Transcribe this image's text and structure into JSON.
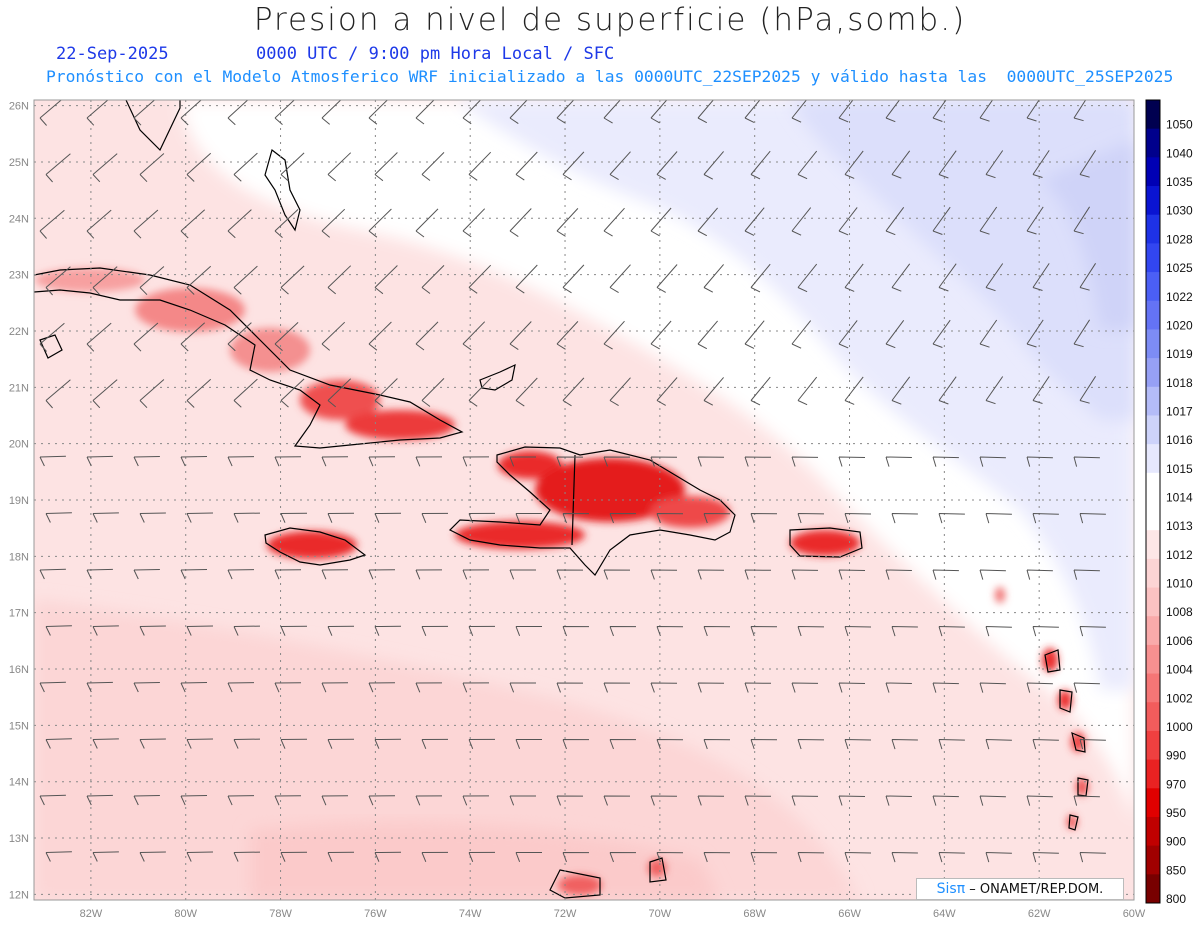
{
  "header": {
    "title": "Presion a nivel de superficie (hPa,somb.)",
    "date": "22-Sep-2025",
    "time_info": "0000 UTC / 9:00 pm Hora Local / SFC",
    "model_info": "Pronóstico con el Modelo Atmosferico WRF inicializado a las 0000UTC_22SEP2025 y válido hasta las  0000UTC_25SEP2025"
  },
  "axes": {
    "lon_labels": [
      "82W",
      "80W",
      "78W",
      "76W",
      "74W",
      "72W",
      "70W",
      "68W",
      "66W",
      "64W",
      "62W",
      "60W"
    ],
    "lon_values": [
      -82,
      -80,
      -78,
      -76,
      -74,
      -72,
      -70,
      -68,
      -66,
      -64,
      -62,
      -60
    ],
    "lat_labels": [
      "26N",
      "25N",
      "24N",
      "23N",
      "22N",
      "21N",
      "20N",
      "19N",
      "18N",
      "17N",
      "16N",
      "15N",
      "14N",
      "13N",
      "12N"
    ],
    "lat_values": [
      26,
      25,
      24,
      23,
      22,
      21,
      20,
      19,
      18,
      17,
      16,
      15,
      14,
      13,
      12
    ],
    "lon_range": [
      -83.2,
      -60.0
    ],
    "lat_range": [
      11.9,
      26.1
    ]
  },
  "colorbar": {
    "levels": [
      "1050",
      "1040",
      "1035",
      "1030",
      "1028",
      "1025",
      "1022",
      "1020",
      "1019",
      "1018",
      "1017",
      "1016",
      "1015",
      "1014",
      "1013",
      "1012",
      "1010",
      "1008",
      "1006",
      "1004",
      "1002",
      "1000",
      "990",
      "970",
      "950",
      "900",
      "850",
      "800"
    ],
    "colors": [
      "#000050",
      "#00008c",
      "#0000b4",
      "#0a14d2",
      "#1e32e6",
      "#3246f0",
      "#4b5ff5",
      "#6473f5",
      "#7d8cf5",
      "#96a0f5",
      "#b4bcf8",
      "#cdd3fa",
      "#e6e8fd",
      "#ffffff",
      "#ffffff",
      "#fde6e6",
      "#fcd4d4",
      "#fbc2c2",
      "#f9aaaa",
      "#f79090",
      "#f57676",
      "#f25c5c",
      "#ef4040",
      "#ea2222",
      "#e00000",
      "#c00000",
      "#a00000",
      "#780000"
    ]
  },
  "credit": {
    "brand": "Sisπ",
    "org": "– ONAMET/REP.DOM."
  },
  "colors": {
    "grid": "#777777",
    "coast": "#000000",
    "barb": "#444444",
    "low_red": "#e41a1a",
    "high_blue": "#dfe2fb"
  }
}
